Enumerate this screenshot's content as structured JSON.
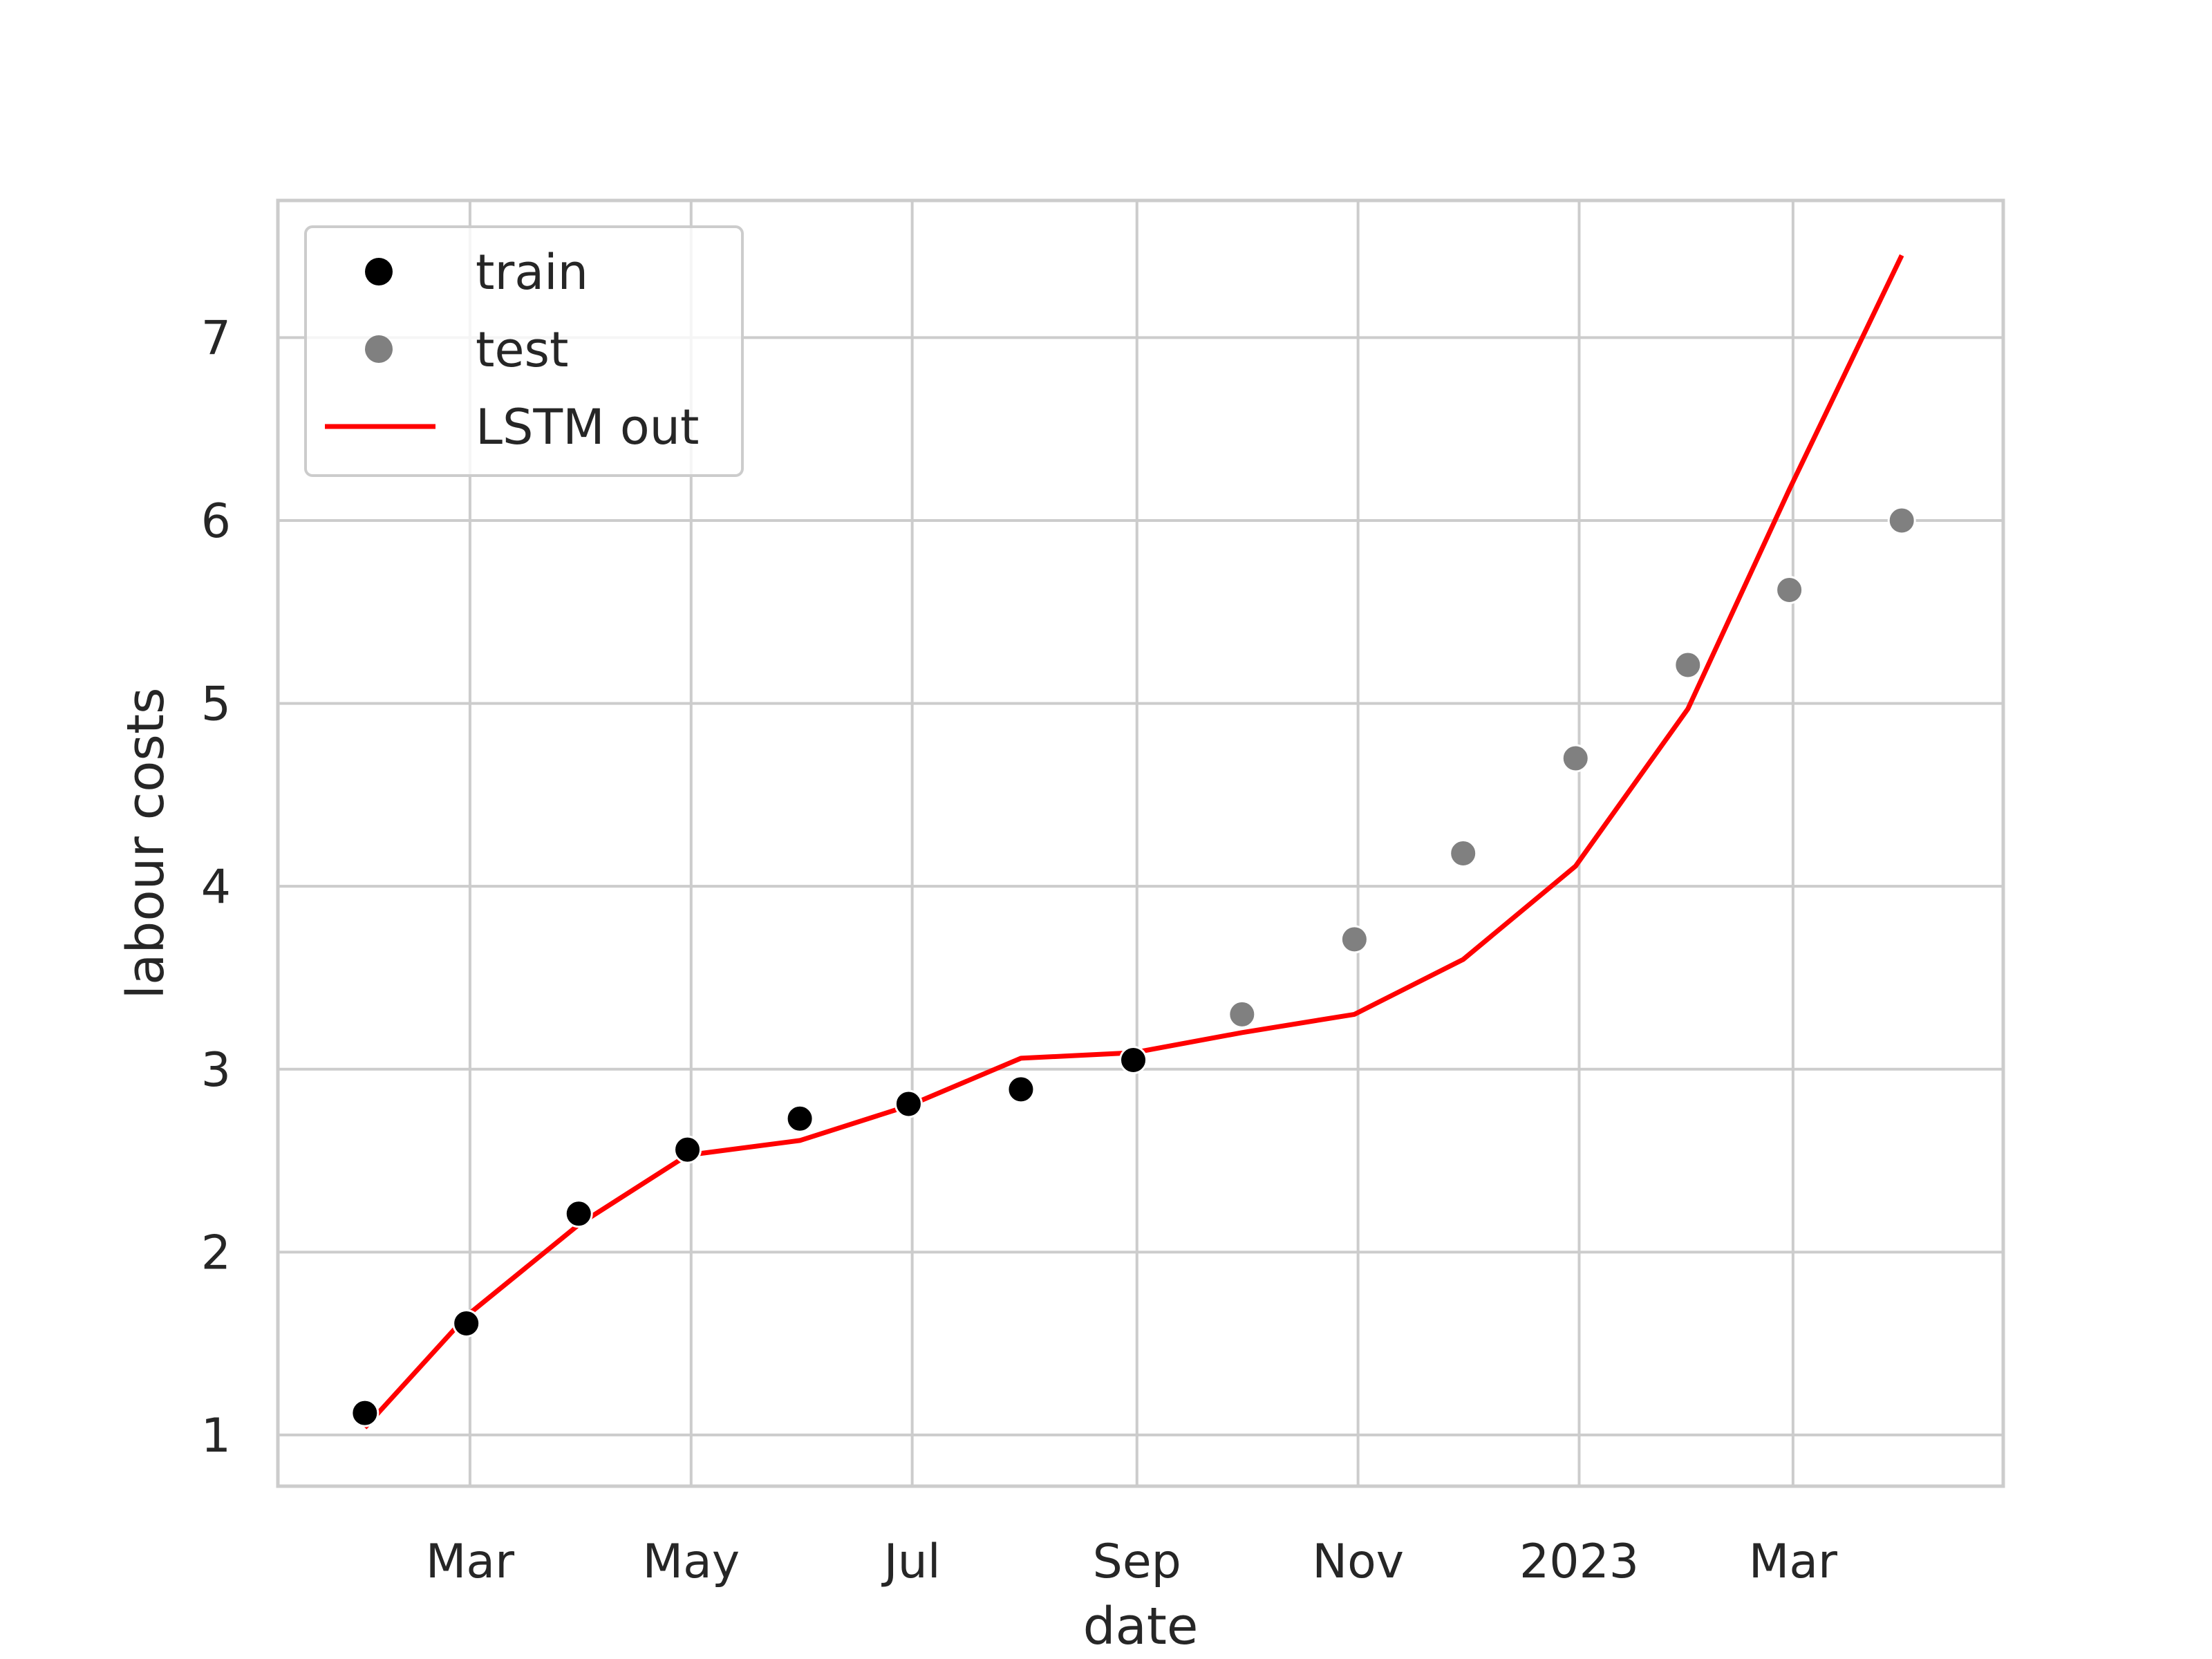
{
  "chart_data": {
    "type": "line",
    "xlabel": "date",
    "ylabel": "labour costs",
    "x_ticks": [
      "Mar",
      "May",
      "Jul",
      "Sep",
      "Nov",
      "2023",
      "Mar"
    ],
    "x_tick_dates": [
      "2022-03-01",
      "2022-05-01",
      "2022-07-01",
      "2022-09-01",
      "2022-11-01",
      "2023-01-01",
      "2023-03-01"
    ],
    "xlim": [
      "2022-01-07",
      "2023-04-28"
    ],
    "y_ticks": [
      1,
      2,
      3,
      4,
      5,
      6,
      7
    ],
    "ylim": [
      0.72,
      7.75
    ],
    "grid": true,
    "legend_position": "top-left",
    "legend": [
      "train",
      "test",
      "LSTM out"
    ],
    "series": [
      {
        "name": "train",
        "kind": "scatter",
        "color": "#000000",
        "x": [
          "2022-01-31",
          "2022-02-28",
          "2022-03-31",
          "2022-04-30",
          "2022-05-31",
          "2022-06-30",
          "2022-07-31",
          "2022-08-31"
        ],
        "y": [
          1.12,
          1.61,
          2.21,
          2.56,
          2.73,
          2.81,
          2.89,
          3.05
        ]
      },
      {
        "name": "test",
        "kind": "scatter",
        "color": "#808080",
        "x": [
          "2022-09-30",
          "2022-10-31",
          "2022-11-30",
          "2022-12-31",
          "2023-01-31",
          "2023-02-28",
          "2023-03-31"
        ],
        "y": [
          3.3,
          3.71,
          4.18,
          4.7,
          5.21,
          5.62,
          6.0
        ]
      },
      {
        "name": "LSTM out",
        "kind": "line",
        "color": "#ff0000",
        "x": [
          "2022-01-31",
          "2022-02-28",
          "2022-03-31",
          "2022-04-30",
          "2022-05-31",
          "2022-06-30",
          "2022-07-31",
          "2022-08-31",
          "2022-09-30",
          "2022-10-31",
          "2022-11-30",
          "2022-12-31",
          "2023-01-31",
          "2023-02-28",
          "2023-03-31"
        ],
        "y": [
          1.04,
          1.65,
          2.15,
          2.53,
          2.61,
          2.8,
          3.06,
          3.09,
          3.2,
          3.3,
          3.6,
          4.11,
          4.97,
          6.17,
          7.45
        ]
      }
    ]
  }
}
